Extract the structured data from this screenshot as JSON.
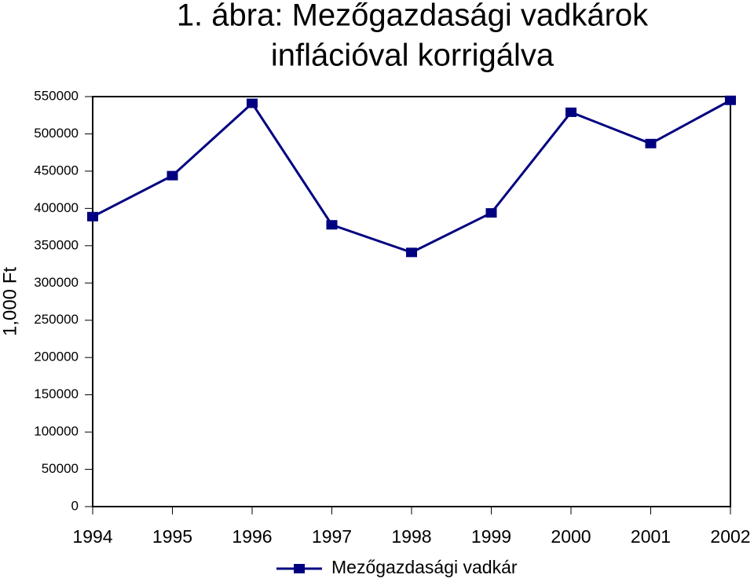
{
  "chart_data": {
    "type": "line",
    "title": [
      "1. ábra: Mezőgazdasági vadkárok",
      "inflációval korrigálva"
    ],
    "y_label": "1,000 Ft",
    "categories": [
      "1994",
      "1995",
      "1996",
      "1997",
      "1998",
      "1999",
      "2000",
      "2001",
      "2002"
    ],
    "series": [
      {
        "name": "Mezőgazdasági vadkár",
        "color": "#000080",
        "values": [
          389000,
          444000,
          541000,
          378000,
          341000,
          394000,
          529000,
          487000,
          545000
        ]
      }
    ],
    "ylim": [
      0,
      550000
    ],
    "yticks": [
      0,
      50000,
      100000,
      150000,
      200000,
      250000,
      300000,
      350000,
      400000,
      450000,
      500000,
      550000
    ],
    "grid": false,
    "legend": "bottom"
  }
}
